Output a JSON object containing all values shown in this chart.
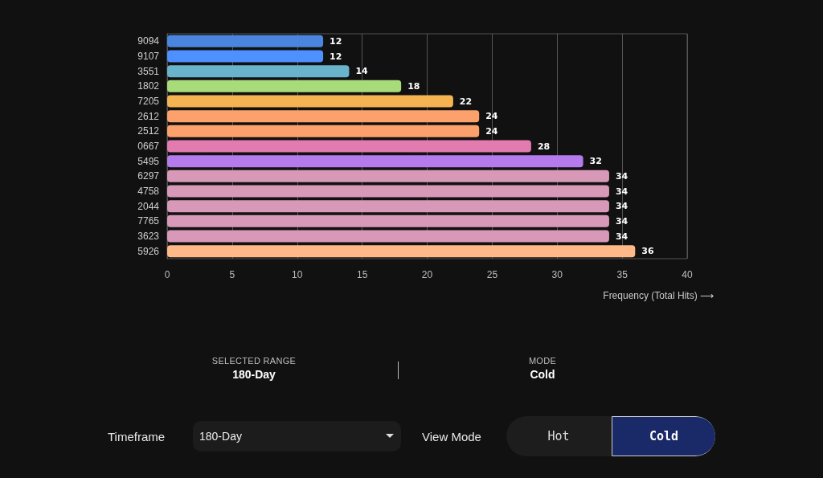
{
  "chart_data": {
    "type": "bar",
    "orientation": "horizontal",
    "categories": [
      "9094",
      "9107",
      "3551",
      "1802",
      "7205",
      "2612",
      "2512",
      "0667",
      "5495",
      "6297",
      "4758",
      "2044",
      "7765",
      "3623",
      "5926"
    ],
    "values": [
      12,
      12,
      14,
      18,
      22,
      24,
      24,
      28,
      32,
      34,
      34,
      34,
      34,
      34,
      36
    ],
    "colors": [
      "#4a86e0",
      "#4d90fe",
      "#6ab4cb",
      "#a8dc7b",
      "#f6b352",
      "#fca06c",
      "#fca06c",
      "#e27bb0",
      "#b57aeb",
      "#d898b8",
      "#d898b8",
      "#d898b8",
      "#d898b8",
      "#d898b8",
      "#ffb888"
    ],
    "xlim": [
      0,
      40
    ],
    "xticks": [
      0,
      5,
      10,
      15,
      20,
      25,
      30,
      35,
      40
    ],
    "xlabel": "Frequency (Total Hits) ⟶",
    "grid": "x",
    "data_labels": true,
    "annotations": [
      "SELECTED RANGE",
      "180-Day",
      "MODE",
      "Cold",
      "Timeframe",
      "180-Day",
      "View Mode",
      "Hot",
      "Cold"
    ]
  }
}
